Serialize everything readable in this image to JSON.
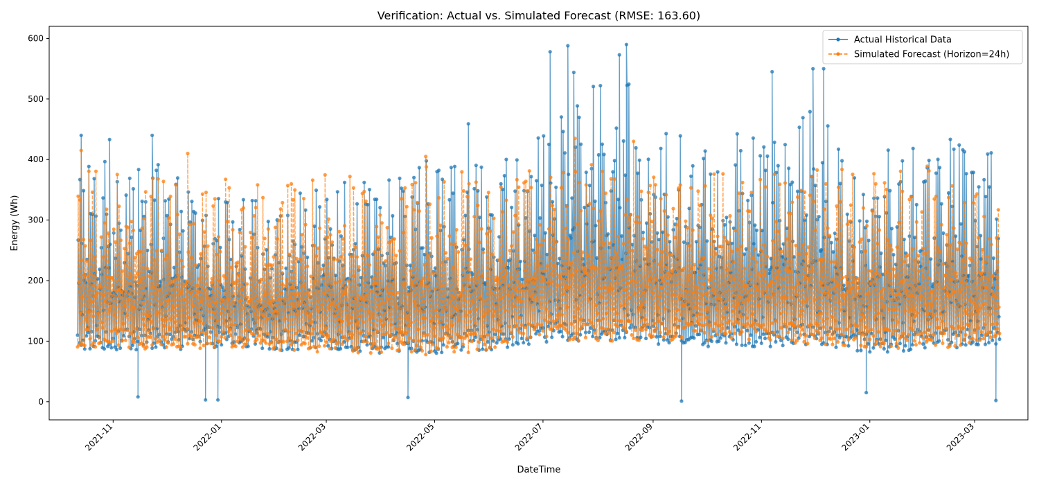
{
  "chart_data": {
    "type": "line",
    "title": "Verification: Actual vs. Simulated Forecast (RMSE: 163.60)",
    "xlabel": "DateTime",
    "ylabel": "Energy (Wh)",
    "x_range": [
      "2021-10-12",
      "2023-03-15"
    ],
    "ylim": [
      -30,
      620
    ],
    "y_ticks": [
      0,
      100,
      200,
      300,
      400,
      500,
      600
    ],
    "x_ticks": [
      "2021-11",
      "2022-01",
      "2022-03",
      "2022-05",
      "2022-07",
      "2022-09",
      "2022-11",
      "2023-01",
      "2023-03"
    ],
    "grid": false,
    "legend_position": "top-right",
    "series": [
      {
        "name": "Actual Historical Data",
        "color": "#1f77b4",
        "line_style": "solid",
        "marker": "circle",
        "daily_profile": {
          "dates": [
            "2021-10-12",
            "2021-11-01",
            "2021-12-01",
            "2022-01-01",
            "2022-02-01",
            "2022-03-01",
            "2022-04-01",
            "2022-05-01",
            "2022-06-01",
            "2022-07-01",
            "2022-07-15",
            "2022-08-15",
            "2022-09-01",
            "2022-10-01",
            "2022-11-01",
            "2022-12-01",
            "2023-01-01",
            "2023-02-01",
            "2023-03-15"
          ],
          "daily_min": [
            85,
            85,
            85,
            90,
            85,
            80,
            80,
            80,
            85,
            95,
            100,
            100,
            95,
            90,
            90,
            95,
            80,
            85,
            95
          ],
          "daily_max": [
            390,
            390,
            380,
            330,
            320,
            370,
            360,
            400,
            380,
            470,
            540,
            540,
            440,
            420,
            480,
            480,
            400,
            430,
            420
          ]
        },
        "notable_points": [
          {
            "x": "2021-10-14",
            "y": 440
          },
          {
            "x": "2021-10-30",
            "y": 433
          },
          {
            "x": "2021-11-15",
            "y": 8
          },
          {
            "x": "2021-11-23",
            "y": 440
          },
          {
            "x": "2021-12-23",
            "y": 3
          },
          {
            "x": "2021-12-30",
            "y": 3
          },
          {
            "x": "2022-04-16",
            "y": 7
          },
          {
            "x": "2022-05-20",
            "y": 459
          },
          {
            "x": "2022-07-05",
            "y": 578
          },
          {
            "x": "2022-07-15",
            "y": 588
          },
          {
            "x": "2022-08-13",
            "y": 573
          },
          {
            "x": "2022-08-17",
            "y": 590
          },
          {
            "x": "2022-09-17",
            "y": 1
          },
          {
            "x": "2022-11-07",
            "y": 545
          },
          {
            "x": "2022-11-30",
            "y": 550
          },
          {
            "x": "2022-12-06",
            "y": 550
          },
          {
            "x": "2022-12-30",
            "y": 15
          },
          {
            "x": "2023-03-13",
            "y": 2
          }
        ]
      },
      {
        "name": "Simulated Forecast (Horizon=24h)",
        "color": "#ff7f0e",
        "line_style": "dashed",
        "marker": "circle",
        "daily_profile": {
          "dates": [
            "2021-10-12",
            "2021-11-01",
            "2021-12-01",
            "2022-01-01",
            "2022-02-01",
            "2022-03-01",
            "2022-04-01",
            "2022-05-01",
            "2022-06-01",
            "2022-07-01",
            "2022-08-01",
            "2022-09-01",
            "2022-10-01",
            "2022-11-01",
            "2022-12-01",
            "2023-01-01",
            "2023-02-01",
            "2023-03-15"
          ],
          "daily_min": [
            90,
            90,
            85,
            90,
            85,
            80,
            80,
            75,
            85,
            100,
            100,
            100,
            100,
            100,
            95,
            90,
            85,
            100
          ],
          "daily_max": [
            380,
            370,
            370,
            360,
            350,
            370,
            370,
            380,
            360,
            390,
            385,
            370,
            370,
            370,
            380,
            370,
            380,
            360
          ]
        },
        "notable_points": [
          {
            "x": "2021-10-14",
            "y": 415
          },
          {
            "x": "2021-12-13",
            "y": 410
          },
          {
            "x": "2022-04-26",
            "y": 405
          },
          {
            "x": "2022-07-19",
            "y": 435
          },
          {
            "x": "2022-08-21",
            "y": 430
          }
        ]
      }
    ]
  }
}
